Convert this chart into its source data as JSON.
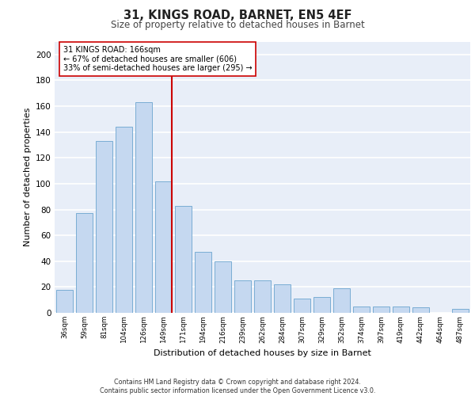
{
  "title1": "31, KINGS ROAD, BARNET, EN5 4EF",
  "title2": "Size of property relative to detached houses in Barnet",
  "xlabel": "Distribution of detached houses by size in Barnet",
  "ylabel": "Number of detached properties",
  "categories": [
    "36sqm",
    "59sqm",
    "81sqm",
    "104sqm",
    "126sqm",
    "149sqm",
    "171sqm",
    "194sqm",
    "216sqm",
    "239sqm",
    "262sqm",
    "284sqm",
    "307sqm",
    "329sqm",
    "352sqm",
    "374sqm",
    "397sqm",
    "419sqm",
    "442sqm",
    "464sqm",
    "487sqm"
  ],
  "values": [
    18,
    77,
    133,
    144,
    163,
    102,
    83,
    47,
    40,
    25,
    25,
    22,
    11,
    12,
    19,
    5,
    5,
    5,
    4,
    0,
    3
  ],
  "bar_color": "#c5d8f0",
  "bar_edge_color": "#7aadd4",
  "vline_x_index": 5,
  "vline_color": "#cc0000",
  "annotation_text": "31 KINGS ROAD: 166sqm\n← 67% of detached houses are smaller (606)\n33% of semi-detached houses are larger (295) →",
  "annotation_box_color": "#ffffff",
  "annotation_box_edge": "#cc0000",
  "ylim": [
    0,
    210
  ],
  "yticks": [
    0,
    20,
    40,
    60,
    80,
    100,
    120,
    140,
    160,
    180,
    200
  ],
  "footer_line1": "Contains HM Land Registry data © Crown copyright and database right 2024.",
  "footer_line2": "Contains public sector information licensed under the Open Government Licence v3.0.",
  "background_color": "#e8eef8",
  "grid_color": "#ffffff"
}
